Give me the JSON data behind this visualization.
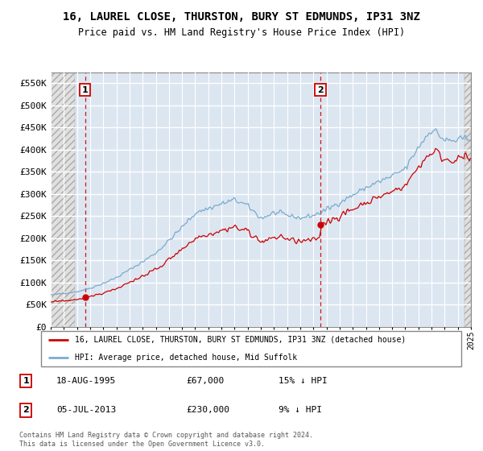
{
  "title": "16, LAUREL CLOSE, THURSTON, BURY ST EDMUNDS, IP31 3NZ",
  "subtitle": "Price paid vs. HM Land Registry's House Price Index (HPI)",
  "ylim": [
    0,
    575000
  ],
  "ytick_labels": [
    "£0",
    "£50K",
    "£100K",
    "£150K",
    "£200K",
    "£250K",
    "£300K",
    "£350K",
    "£400K",
    "£450K",
    "£500K",
    "£550K"
  ],
  "ytick_values": [
    0,
    50000,
    100000,
    150000,
    200000,
    250000,
    300000,
    350000,
    400000,
    450000,
    500000,
    550000
  ],
  "sale1_year": 1995,
  "sale1_month": 8,
  "sale1_price": 67000,
  "sale2_year": 2013,
  "sale2_month": 7,
  "sale2_price": 230000,
  "red_line_color": "#cc0000",
  "blue_line_color": "#7aabcf",
  "hatch_color": "#bbbbbb",
  "bg_color": "#dce6f1",
  "grid_color": "#ffffff",
  "legend_label1": "16, LAUREL CLOSE, THURSTON, BURY ST EDMUNDS, IP31 3NZ (detached house)",
  "legend_label2": "HPI: Average price, detached house, Mid Suffolk",
  "annotation1_date": "18-AUG-1995",
  "annotation1_price": "£67,000",
  "annotation1_hpi": "15% ↓ HPI",
  "annotation2_date": "05-JUL-2013",
  "annotation2_price": "£230,000",
  "annotation2_hpi": "9% ↓ HPI",
  "footer": "Contains HM Land Registry data © Crown copyright and database right 2024.\nThis data is licensed under the Open Government Licence v3.0."
}
